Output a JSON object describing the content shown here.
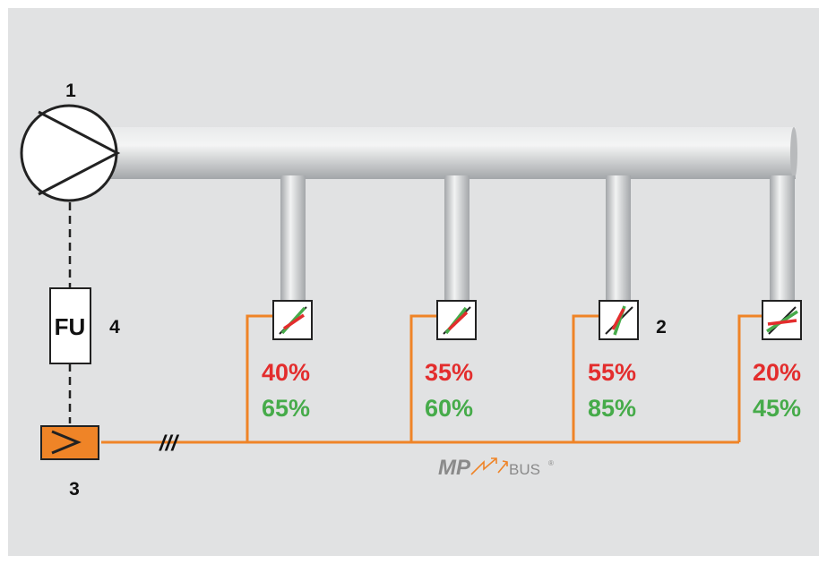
{
  "colors": {
    "background": "#e1e2e3",
    "pipe": "#c4c6c8",
    "bus_line": "#ef8427",
    "opening_red": "#e32d2d",
    "opening_green": "#46ab4a",
    "logo_gray": "#8a8a8a"
  },
  "labels": {
    "fan": "1",
    "damper": "2",
    "controller": "3",
    "fu": "4"
  },
  "fu_box": "FU",
  "cable_marker": "///",
  "logo": {
    "mp": "MP",
    "bus": "BUS",
    "reg": "®"
  },
  "dampers": [
    {
      "red": "40%",
      "green": "65%"
    },
    {
      "red": "35%",
      "green": "60%"
    },
    {
      "red": "55%",
      "green": "85%"
    },
    {
      "red": "20%",
      "green": "45%"
    }
  ]
}
